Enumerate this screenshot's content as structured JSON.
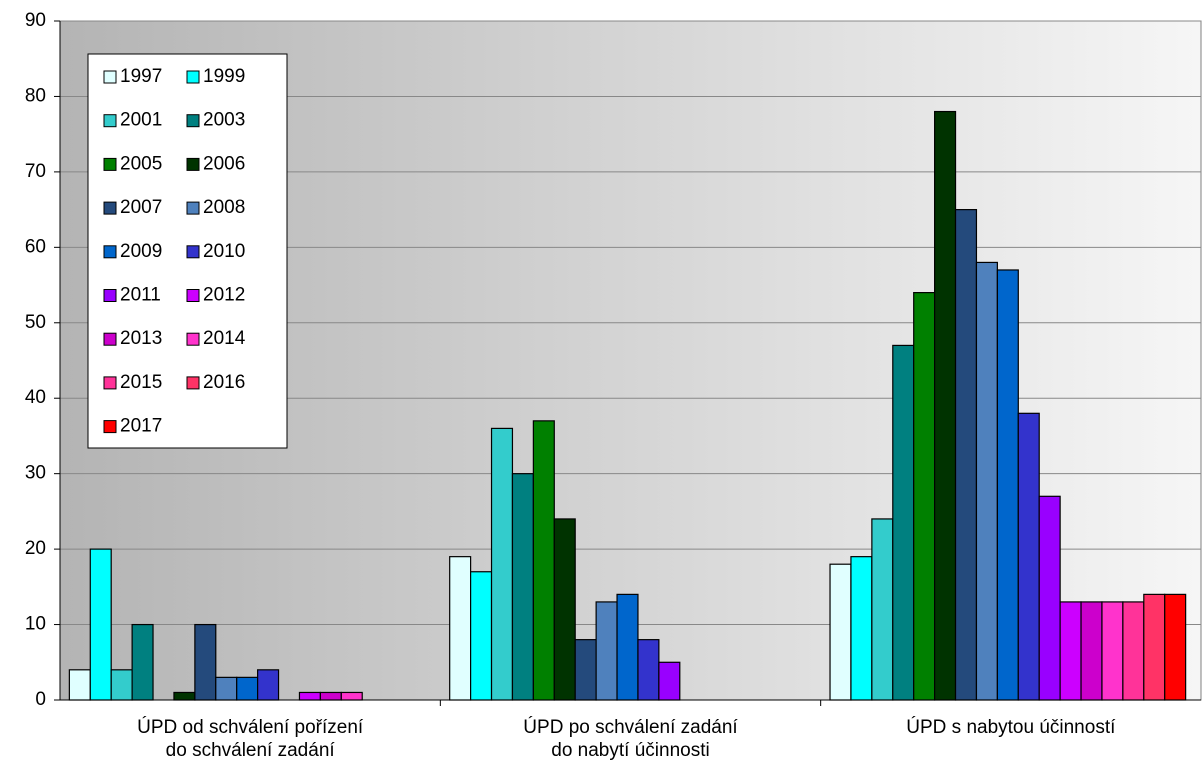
{
  "chart_data": {
    "type": "bar",
    "categories": [
      [
        "ÚPD od schválení pořízení",
        "do schválení zadání"
      ],
      [
        "ÚPD po schválení zadání",
        "do nabytí účinnosti"
      ],
      [
        "ÚPD s nabytou účinností"
      ]
    ],
    "series": [
      {
        "name": "1997",
        "color": "#e0ffff",
        "values": [
          4,
          19,
          18
        ]
      },
      {
        "name": "1999",
        "color": "#00ffff",
        "values": [
          20,
          17,
          19
        ]
      },
      {
        "name": "2001",
        "color": "#33cccc",
        "values": [
          4,
          36,
          24
        ]
      },
      {
        "name": "2003",
        "color": "#008080",
        "values": [
          10,
          30,
          47
        ]
      },
      {
        "name": "2005",
        "color": "#008000",
        "values": [
          0,
          37,
          54
        ]
      },
      {
        "name": "2006",
        "color": "#003300",
        "values": [
          1,
          24,
          78
        ]
      },
      {
        "name": "2007",
        "color": "#244a7c",
        "values": [
          10,
          8,
          65
        ]
      },
      {
        "name": "2008",
        "color": "#4f81bd",
        "values": [
          3,
          13,
          58
        ]
      },
      {
        "name": "2009",
        "color": "#0066cc",
        "values": [
          3,
          14,
          57
        ]
      },
      {
        "name": "2010",
        "color": "#3333cc",
        "values": [
          4,
          8,
          38
        ]
      },
      {
        "name": "2011",
        "color": "#9900ff",
        "values": [
          0,
          5,
          27
        ]
      },
      {
        "name": "2012",
        "color": "#cc00ff",
        "values": [
          1,
          0,
          13
        ]
      },
      {
        "name": "2013",
        "color": "#cc00cc",
        "values": [
          1,
          0,
          13
        ]
      },
      {
        "name": "2014",
        "color": "#ff33cc",
        "values": [
          1,
          0,
          13
        ]
      },
      {
        "name": "2015",
        "color": "#ff3399",
        "values": [
          0,
          0,
          13
        ]
      },
      {
        "name": "2016",
        "color": "#ff3366",
        "values": [
          0,
          0,
          14
        ]
      },
      {
        "name": "2017",
        "color": "#ff0000",
        "values": [
          0,
          0,
          14
        ]
      }
    ],
    "ylim": [
      0,
      90
    ],
    "yticks": [
      0,
      10,
      20,
      30,
      40,
      50,
      60,
      70,
      80,
      90
    ],
    "grid": true,
    "legend": "upper left"
  }
}
